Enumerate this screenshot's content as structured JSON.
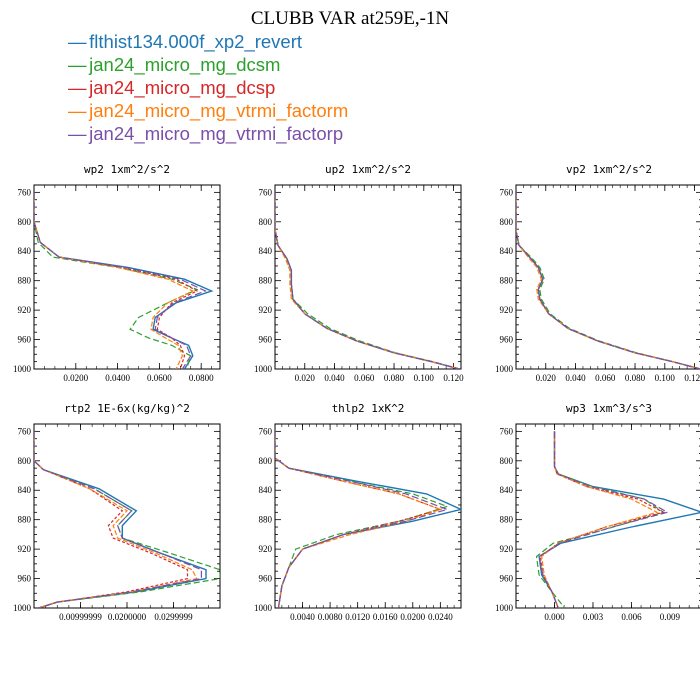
{
  "title": "CLUBB VAR at259E,-1N",
  "legend": [
    {
      "name": "flthist134.000f_xp2_revert",
      "color": "#1f77b4"
    },
    {
      "name": "jan24_micro_mg_dcsm",
      "color": "#2ca02c"
    },
    {
      "name": "jan24_micro_mg_dcsp",
      "color": "#d62728"
    },
    {
      "name": "jan24_micro_mg_vtrmi_factorm",
      "color": "#ff7f0e"
    },
    {
      "name": "jan24_micro_mg_vtrmi_factorp",
      "color": "#7b4fa8"
    }
  ],
  "chart_data": [
    {
      "type": "line",
      "title": "wp2   1xm^2/s^2",
      "ylim": [
        1000,
        750
      ],
      "yticks": [
        "760",
        "800",
        "840",
        "880",
        "920",
        "960",
        "1000"
      ],
      "xlim": [
        0,
        0.089
      ],
      "xticks": [
        "0.0200",
        "0.0400",
        "0.0600",
        "0.0800"
      ],
      "grid": false,
      "series": [
        {
          "x": [
            0,
            0,
            0.003,
            0.012,
            0.045,
            0.072,
            0.085,
            0.068,
            0.058,
            0.057,
            0.066,
            0.074,
            0.076,
            0.072
          ],
          "y": [
            760,
            800,
            828,
            848,
            862,
            878,
            894,
            910,
            930,
            946,
            958,
            968,
            982,
            1000
          ]
        },
        {
          "x": [
            0,
            0,
            0.002,
            0.009,
            0.04,
            0.066,
            0.078,
            0.064,
            0.05,
            0.046,
            0.055,
            0.066,
            0.075,
            0.073
          ],
          "y": [
            760,
            800,
            828,
            848,
            862,
            878,
            892,
            910,
            930,
            946,
            958,
            968,
            982,
            1000
          ]
        },
        {
          "x": [
            0,
            0,
            0.003,
            0.012,
            0.042,
            0.068,
            0.078,
            0.066,
            0.06,
            0.059,
            0.066,
            0.07,
            0.072,
            0.07
          ],
          "y": [
            760,
            800,
            828,
            848,
            862,
            878,
            894,
            910,
            930,
            946,
            958,
            968,
            982,
            1000
          ]
        },
        {
          "x": [
            0,
            0,
            0.003,
            0.012,
            0.04,
            0.064,
            0.076,
            0.064,
            0.057,
            0.056,
            0.063,
            0.069,
            0.071,
            0.068
          ],
          "y": [
            760,
            800,
            828,
            848,
            862,
            878,
            894,
            910,
            930,
            946,
            958,
            968,
            982,
            1000
          ]
        },
        {
          "x": [
            0,
            0,
            0.003,
            0.012,
            0.043,
            0.07,
            0.082,
            0.067,
            0.059,
            0.058,
            0.066,
            0.073,
            0.075,
            0.071
          ],
          "y": [
            760,
            800,
            828,
            848,
            862,
            878,
            894,
            910,
            930,
            946,
            958,
            968,
            982,
            1000
          ]
        }
      ]
    },
    {
      "type": "line",
      "title": "up2   1xm^2/s^2",
      "ylim": [
        1000,
        750
      ],
      "yticks": [
        "760",
        "800",
        "840",
        "880",
        "920",
        "960",
        "1000"
      ],
      "xlim": [
        0,
        0.125
      ],
      "xticks": [
        "0.020",
        "0.040",
        "0.060",
        "0.080",
        "0.100",
        "0.120"
      ],
      "grid": false,
      "series": [
        {
          "x": [
            0,
            0,
            0.002,
            0.008,
            0.011,
            0.011,
            0.012,
            0.02,
            0.035,
            0.055,
            0.08,
            0.105,
            0.124
          ],
          "y": [
            760,
            810,
            832,
            850,
            866,
            885,
            905,
            925,
            945,
            962,
            978,
            990,
            1000
          ]
        },
        {
          "x": [
            0,
            0,
            0.002,
            0.008,
            0.011,
            0.011,
            0.012,
            0.022,
            0.037,
            0.057,
            0.081,
            0.106,
            0.124
          ],
          "y": [
            760,
            810,
            832,
            850,
            866,
            885,
            905,
            925,
            945,
            962,
            978,
            990,
            1000
          ]
        },
        {
          "x": [
            0,
            0,
            0.002,
            0.008,
            0.011,
            0.011,
            0.012,
            0.02,
            0.035,
            0.055,
            0.08,
            0.105,
            0.124
          ],
          "y": [
            760,
            810,
            832,
            850,
            866,
            885,
            905,
            925,
            945,
            962,
            978,
            990,
            1000
          ]
        },
        {
          "x": [
            0,
            0,
            0.002,
            0.007,
            0.01,
            0.01,
            0.011,
            0.02,
            0.035,
            0.055,
            0.08,
            0.105,
            0.124
          ],
          "y": [
            760,
            810,
            832,
            850,
            866,
            885,
            905,
            925,
            945,
            962,
            978,
            990,
            1000
          ]
        },
        {
          "x": [
            0,
            0,
            0.002,
            0.008,
            0.011,
            0.011,
            0.012,
            0.02,
            0.035,
            0.055,
            0.08,
            0.105,
            0.124
          ],
          "y": [
            760,
            810,
            832,
            850,
            866,
            885,
            905,
            925,
            945,
            962,
            978,
            990,
            1000
          ]
        }
      ]
    },
    {
      "type": "line",
      "title": "vp2   1xm^2/s^2",
      "ylim": [
        1000,
        750
      ],
      "yticks": [
        "760",
        "800",
        "840",
        "880",
        "920",
        "960",
        "1000"
      ],
      "xlim": [
        0,
        0.125
      ],
      "xticks": [
        "0.020",
        "0.040",
        "0.060",
        "0.080",
        "0.100",
        "0.120"
      ],
      "grid": false,
      "series": [
        {
          "x": [
            0,
            0,
            0.002,
            0.01,
            0.015,
            0.018,
            0.015,
            0.016,
            0.022,
            0.035,
            0.055,
            0.08,
            0.105,
            0.124
          ],
          "y": [
            760,
            812,
            832,
            850,
            862,
            878,
            892,
            905,
            925,
            945,
            962,
            978,
            990,
            1000
          ]
        },
        {
          "x": [
            0,
            0,
            0.002,
            0.011,
            0.016,
            0.019,
            0.016,
            0.017,
            0.023,
            0.036,
            0.056,
            0.081,
            0.105,
            0.124
          ],
          "y": [
            760,
            812,
            832,
            850,
            862,
            878,
            892,
            905,
            925,
            945,
            962,
            978,
            990,
            1000
          ]
        },
        {
          "x": [
            0,
            0,
            0.002,
            0.01,
            0.015,
            0.018,
            0.015,
            0.016,
            0.022,
            0.035,
            0.055,
            0.08,
            0.105,
            0.124
          ],
          "y": [
            760,
            812,
            832,
            850,
            862,
            878,
            892,
            905,
            925,
            945,
            962,
            978,
            990,
            1000
          ]
        },
        {
          "x": [
            0,
            0,
            0.002,
            0.009,
            0.014,
            0.017,
            0.014,
            0.015,
            0.022,
            0.035,
            0.055,
            0.08,
            0.105,
            0.124
          ],
          "y": [
            760,
            812,
            832,
            850,
            862,
            878,
            892,
            905,
            925,
            945,
            962,
            978,
            990,
            1000
          ]
        },
        {
          "x": [
            0,
            0,
            0.002,
            0.01,
            0.015,
            0.018,
            0.015,
            0.016,
            0.022,
            0.035,
            0.055,
            0.08,
            0.105,
            0.124
          ],
          "y": [
            760,
            812,
            832,
            850,
            862,
            878,
            892,
            905,
            925,
            945,
            962,
            978,
            990,
            1000
          ]
        }
      ]
    },
    {
      "type": "line",
      "title": "rtp2   1E-6x(kg/kg)^2",
      "ylim": [
        1000,
        750
      ],
      "yticks": [
        "760",
        "800",
        "840",
        "880",
        "920",
        "960",
        "1000"
      ],
      "xlim": [
        0,
        0.04
      ],
      "xticks": [
        "0.00999999",
        "0.0200000",
        "0.0299999"
      ],
      "grid": false,
      "series": [
        {
          "x": [
            0,
            0,
            0.002,
            0.014,
            0.022,
            0.019,
            0.019,
            0.027,
            0.037,
            0.037,
            0.022,
            0.005,
            0.001
          ],
          "y": [
            760,
            800,
            812,
            838,
            868,
            888,
            905,
            925,
            948,
            960,
            978,
            992,
            1000
          ]
        },
        {
          "x": [
            0,
            0,
            0.002,
            0.013,
            0.021,
            0.018,
            0.019,
            0.029,
            0.04,
            0.04,
            0.023,
            0.005,
            0.001
          ],
          "y": [
            760,
            800,
            812,
            838,
            868,
            888,
            905,
            925,
            948,
            960,
            978,
            992,
            1000
          ]
        },
        {
          "x": [
            0,
            0,
            0.002,
            0.012,
            0.019,
            0.016,
            0.017,
            0.025,
            0.033,
            0.033,
            0.02,
            0.005,
            0.001
          ],
          "y": [
            760,
            800,
            812,
            838,
            868,
            888,
            905,
            925,
            948,
            960,
            978,
            992,
            1000
          ]
        },
        {
          "x": [
            0,
            0,
            0.002,
            0.012,
            0.02,
            0.017,
            0.018,
            0.026,
            0.034,
            0.035,
            0.021,
            0.005,
            0.001
          ],
          "y": [
            760,
            800,
            812,
            838,
            868,
            888,
            905,
            925,
            948,
            960,
            978,
            992,
            1000
          ]
        },
        {
          "x": [
            0,
            0,
            0.002,
            0.013,
            0.021,
            0.018,
            0.019,
            0.027,
            0.036,
            0.036,
            0.021,
            0.005,
            0.001
          ],
          "y": [
            760,
            800,
            812,
            838,
            868,
            888,
            905,
            925,
            948,
            960,
            978,
            992,
            1000
          ]
        }
      ]
    },
    {
      "type": "line",
      "title": "thlp2   1xK^2",
      "ylim": [
        1000,
        750
      ],
      "yticks": [
        "760",
        "800",
        "840",
        "880",
        "920",
        "960",
        "1000"
      ],
      "xlim": [
        0,
        0.027
      ],
      "xticks": [
        "0.0040",
        "0.0080",
        "0.0120",
        "0.0160",
        "0.0200",
        "0.0240"
      ],
      "grid": false,
      "series": [
        {
          "x": [
            0,
            0,
            0.002,
            0.012,
            0.022,
            0.027,
            0.02,
            0.01,
            0.004,
            0.002,
            0.001,
            0.0005
          ],
          "y": [
            760,
            796,
            810,
            828,
            845,
            866,
            882,
            900,
            920,
            945,
            970,
            1000
          ]
        },
        {
          "x": [
            0,
            0,
            0.002,
            0.011,
            0.02,
            0.025,
            0.019,
            0.009,
            0.003,
            0.002,
            0.001,
            0.0005
          ],
          "y": [
            760,
            796,
            810,
            828,
            845,
            862,
            880,
            900,
            920,
            945,
            970,
            1000
          ]
        },
        {
          "x": [
            0,
            0,
            0.002,
            0.01,
            0.018,
            0.024,
            0.018,
            0.01,
            0.004,
            0.002,
            0.001,
            0.0005
          ],
          "y": [
            760,
            796,
            810,
            828,
            845,
            866,
            882,
            900,
            920,
            945,
            970,
            1000
          ]
        },
        {
          "x": [
            0,
            0,
            0.002,
            0.01,
            0.018,
            0.024,
            0.019,
            0.011,
            0.004,
            0.002,
            0.001,
            0.0005
          ],
          "y": [
            760,
            796,
            810,
            828,
            845,
            866,
            882,
            900,
            920,
            945,
            970,
            1000
          ]
        },
        {
          "x": [
            0,
            0,
            0.002,
            0.011,
            0.019,
            0.025,
            0.019,
            0.01,
            0.004,
            0.002,
            0.001,
            0.0005
          ],
          "y": [
            760,
            796,
            810,
            828,
            845,
            866,
            882,
            900,
            920,
            945,
            970,
            1000
          ]
        }
      ]
    },
    {
      "type": "line",
      "title": "wp3   1xm^3/s^3",
      "ylim": [
        1000,
        750
      ],
      "yticks": [
        "760",
        "800",
        "840",
        "880",
        "920",
        "960",
        "1000"
      ],
      "xlim": [
        -0.003,
        0.0115
      ],
      "xticks": [
        "0.000",
        "0.003",
        "0.006",
        "0.009"
      ],
      "grid": false,
      "series": [
        {
          "x": [
            0,
            0,
            0.0003,
            0.003,
            0.0085,
            0.0115,
            0.006,
            0.0005,
            -0.0012,
            -0.001,
            -0.0002,
            0.0003
          ],
          "y": [
            760,
            808,
            818,
            835,
            852,
            870,
            890,
            912,
            930,
            955,
            978,
            1000
          ]
        },
        {
          "x": [
            0,
            0,
            0.0003,
            0.003,
            0.007,
            0.0085,
            0.004,
            -0.0001,
            -0.0014,
            -0.0012,
            -0.0002,
            0.0008
          ],
          "y": [
            760,
            808,
            818,
            835,
            852,
            870,
            893,
            912,
            930,
            955,
            978,
            1000
          ]
        },
        {
          "x": [
            0,
            0,
            0.0002,
            0.0025,
            0.0065,
            0.0085,
            0.004,
            0.0003,
            -0.0011,
            -0.0009,
            -0.0002,
            0.0003
          ],
          "y": [
            760,
            808,
            818,
            835,
            852,
            870,
            890,
            912,
            930,
            955,
            978,
            1000
          ]
        },
        {
          "x": [
            0,
            0,
            0.0002,
            0.0025,
            0.006,
            0.008,
            0.004,
            0.0003,
            -0.001,
            -0.0008,
            -0.0002,
            0.0003
          ],
          "y": [
            760,
            808,
            818,
            835,
            852,
            870,
            890,
            912,
            930,
            955,
            978,
            1000
          ]
        },
        {
          "x": [
            0,
            0,
            0.0003,
            0.0028,
            0.007,
            0.0088,
            0.0045,
            0.0004,
            -0.0012,
            -0.0009,
            -0.0002,
            0.0003
          ],
          "y": [
            760,
            808,
            818,
            835,
            852,
            870,
            890,
            912,
            930,
            955,
            978,
            1000
          ]
        }
      ]
    }
  ]
}
